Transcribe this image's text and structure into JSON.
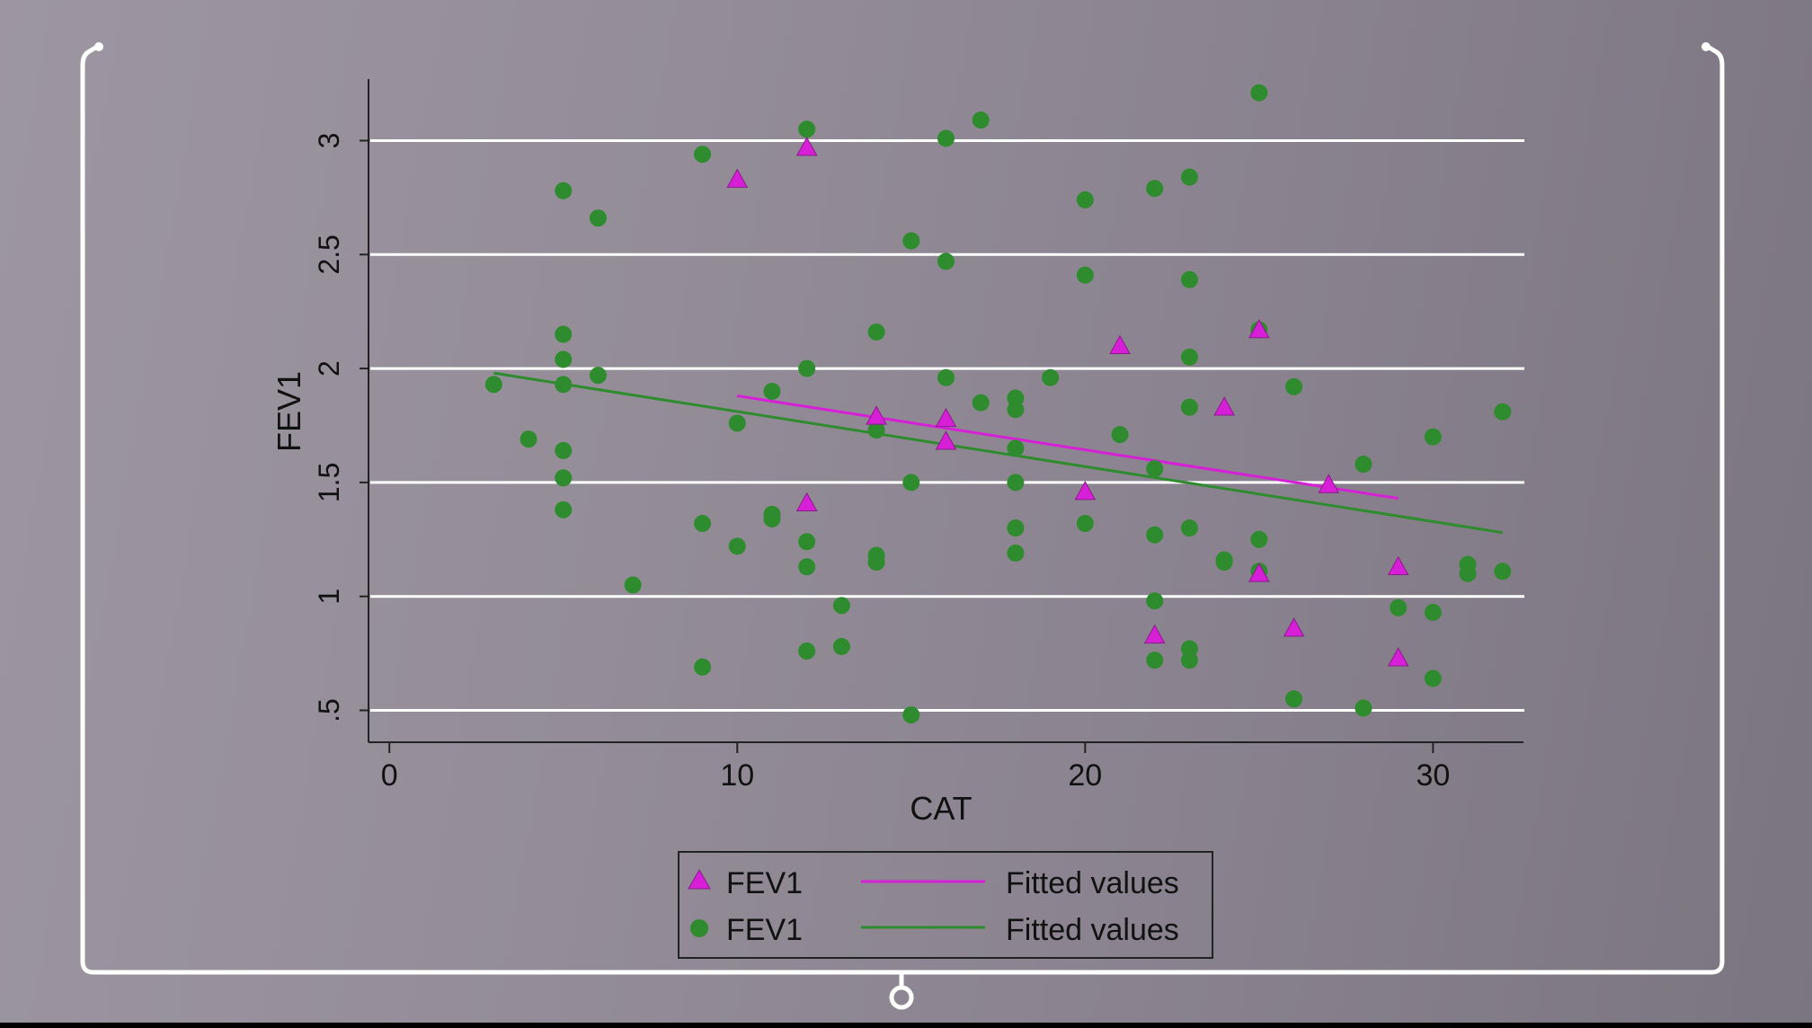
{
  "chart_data": {
    "type": "scatter",
    "xlabel": "CAT",
    "ylabel": "FEV1",
    "xlim": [
      -0.6,
      32.6
    ],
    "ylim": [
      0.36,
      3.27
    ],
    "xticks": [
      {
        "value": 0,
        "label": "0"
      },
      {
        "value": 10,
        "label": "10"
      },
      {
        "value": 20,
        "label": "20"
      },
      {
        "value": 30,
        "label": "30"
      }
    ],
    "yticks": [
      {
        "value": 0.5,
        "label": ".5"
      },
      {
        "value": 1,
        "label": "1"
      },
      {
        "value": 1.5,
        "label": "1.5"
      },
      {
        "value": 2,
        "label": "2"
      },
      {
        "value": 2.5,
        "label": "2.5"
      },
      {
        "value": 3,
        "label": "3"
      }
    ],
    "grid": "horizontal",
    "legend_position": "bottom",
    "series": [
      {
        "name": "FEV1",
        "kind": "scatter",
        "marker": "triangle",
        "color": "#d61fd6",
        "points": [
          [
            10,
            2.83
          ],
          [
            12,
            2.97
          ],
          [
            12,
            1.41
          ],
          [
            14,
            1.79
          ],
          [
            16,
            1.78
          ],
          [
            16,
            1.68
          ],
          [
            20,
            1.46
          ],
          [
            21,
            2.1
          ],
          [
            22,
            0.83
          ],
          [
            24,
            1.83
          ],
          [
            25,
            2.17
          ],
          [
            25,
            1.1
          ],
          [
            26,
            0.86
          ],
          [
            27,
            1.49
          ],
          [
            29,
            1.13
          ],
          [
            29,
            0.73
          ]
        ]
      },
      {
        "name": "FEV1",
        "kind": "scatter",
        "marker": "circle",
        "color": "#2e8b2e",
        "points": [
          [
            3,
            1.93
          ],
          [
            4,
            1.69
          ],
          [
            5,
            2.78
          ],
          [
            5,
            2.15
          ],
          [
            5,
            2.04
          ],
          [
            5,
            1.93
          ],
          [
            5,
            1.64
          ],
          [
            5,
            1.52
          ],
          [
            5,
            1.38
          ],
          [
            6,
            2.66
          ],
          [
            6,
            1.97
          ],
          [
            7,
            1.05
          ],
          [
            9,
            2.94
          ],
          [
            9,
            1.32
          ],
          [
            9,
            0.69
          ],
          [
            10,
            1.76
          ],
          [
            10,
            1.22
          ],
          [
            11,
            1.9
          ],
          [
            11,
            1.36
          ],
          [
            11,
            1.34
          ],
          [
            12,
            3.05
          ],
          [
            12,
            2.0
          ],
          [
            12,
            1.24
          ],
          [
            12,
            1.13
          ],
          [
            12,
            0.76
          ],
          [
            13,
            0.96
          ],
          [
            13,
            0.78
          ],
          [
            14,
            2.16
          ],
          [
            14,
            1.73
          ],
          [
            14,
            1.18
          ],
          [
            14,
            1.15
          ],
          [
            15,
            2.56
          ],
          [
            15,
            1.5
          ],
          [
            15,
            0.48
          ],
          [
            16,
            3.01
          ],
          [
            16,
            2.47
          ],
          [
            16,
            1.96
          ],
          [
            17,
            3.09
          ],
          [
            17,
            1.85
          ],
          [
            18,
            1.87
          ],
          [
            18,
            1.82
          ],
          [
            18,
            1.65
          ],
          [
            18,
            1.5
          ],
          [
            18,
            1.3
          ],
          [
            18,
            1.19
          ],
          [
            19,
            1.96
          ],
          [
            20,
            2.74
          ],
          [
            20,
            2.41
          ],
          [
            20,
            1.32
          ],
          [
            21,
            1.71
          ],
          [
            22,
            2.79
          ],
          [
            22,
            1.56
          ],
          [
            22,
            1.27
          ],
          [
            22,
            0.98
          ],
          [
            22,
            0.72
          ],
          [
            23,
            2.84
          ],
          [
            23,
            2.39
          ],
          [
            23,
            2.05
          ],
          [
            23,
            1.83
          ],
          [
            23,
            1.3
          ],
          [
            23,
            0.77
          ],
          [
            23,
            0.72
          ],
          [
            24,
            1.16
          ],
          [
            24,
            1.15
          ],
          [
            25,
            3.21
          ],
          [
            25,
            2.17
          ],
          [
            25,
            1.25
          ],
          [
            25,
            1.11
          ],
          [
            26,
            1.92
          ],
          [
            26,
            0.55
          ],
          [
            28,
            1.58
          ],
          [
            28,
            0.51
          ],
          [
            29,
            0.95
          ],
          [
            30,
            1.7
          ],
          [
            30,
            0.93
          ],
          [
            30,
            0.64
          ],
          [
            31,
            1.14
          ],
          [
            31,
            1.1
          ],
          [
            32,
            1.81
          ],
          [
            32,
            1.11
          ]
        ]
      },
      {
        "name": "Fitted values",
        "kind": "line",
        "color": "#d61fd6",
        "points": [
          [
            10,
            1.88
          ],
          [
            29,
            1.43
          ]
        ]
      },
      {
        "name": "Fitted values",
        "kind": "line",
        "color": "#2e8b2e",
        "points": [
          [
            3,
            1.98
          ],
          [
            32,
            1.28
          ]
        ]
      }
    ]
  }
}
